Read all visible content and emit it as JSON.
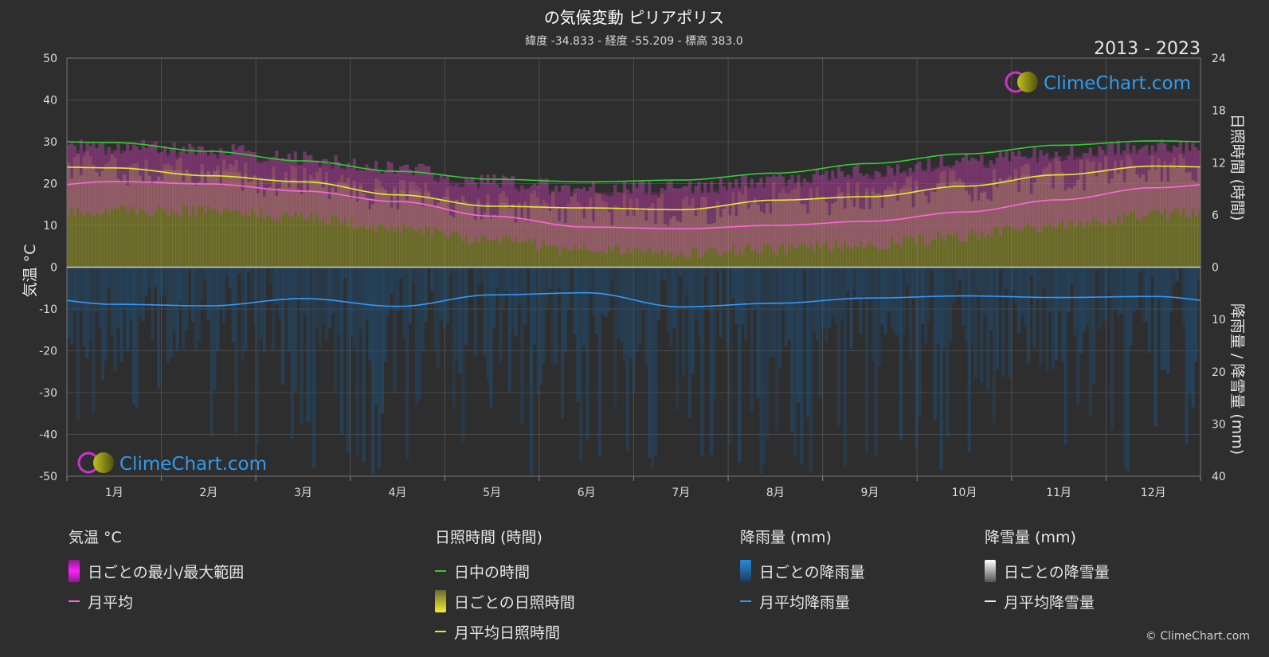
{
  "header": {
    "title": "の気候変動 ピリアポリス",
    "subtitle": "緯度 -34.833 - 経度 -55.209 - 標高 383.0",
    "period": "2013 - 2023"
  },
  "watermark": "ClimeChart.com",
  "copyright": "© ClimeChart.com",
  "chart_data": {
    "type": "area",
    "categories": [
      "1月",
      "2月",
      "3月",
      "4月",
      "5月",
      "6月",
      "7月",
      "8月",
      "9月",
      "10月",
      "11月",
      "12月"
    ],
    "axes": {
      "y_left": {
        "label": "気温 °C",
        "ticks": [
          50,
          40,
          30,
          20,
          10,
          0,
          -10,
          -20,
          -30,
          -40,
          -50
        ],
        "range": [
          -50,
          50
        ]
      },
      "y_right_top": {
        "label": "日照時間 (時間)",
        "ticks": [
          24,
          18,
          12,
          6,
          0
        ],
        "range": [
          0,
          24
        ]
      },
      "y_right_bottom": {
        "label": "降雨量 / 降雪量 (mm)",
        "ticks": [
          0,
          10,
          20,
          30,
          40
        ],
        "range": [
          0,
          40
        ]
      }
    },
    "grid": true,
    "series": [
      {
        "name": "日中の時間",
        "axis": "sunshine_hours",
        "color": "#33cc33",
        "values": [
          14.3,
          13.3,
          12.2,
          11.0,
          10.1,
          9.8,
          10.0,
          10.8,
          11.9,
          13.0,
          14.0,
          14.5
        ]
      },
      {
        "name": "月平均日照時間",
        "axis": "sunshine_hours",
        "color": "#e8e830",
        "values": [
          11.4,
          10.5,
          9.8,
          8.3,
          7.0,
          6.8,
          6.6,
          7.7,
          8.1,
          9.3,
          10.6,
          11.6
        ]
      },
      {
        "name": "月平均",
        "axis": "temperature_c",
        "color": "#ff66dd",
        "values": [
          20.5,
          19.9,
          18.2,
          15.7,
          12.2,
          9.6,
          9.2,
          10.0,
          11.0,
          13.2,
          16.1,
          19.0
        ]
      },
      {
        "name": "日ごとの最小/最大範囲",
        "axis": "temperature_c",
        "color": "#cc44cc",
        "min": [
          13.5,
          13.5,
          12.0,
          9.5,
          6.5,
          4.0,
          3.5,
          4.5,
          5.5,
          7.5,
          10.0,
          12.5
        ],
        "max": [
          28.0,
          27.0,
          25.0,
          22.5,
          19.5,
          18.0,
          18.0,
          20.0,
          22.0,
          24.5,
          26.5,
          28.0
        ]
      },
      {
        "name": "月平均降雨量",
        "axis": "precipitation_mm",
        "color": "#3399ff",
        "values": [
          7.1,
          7.4,
          6.0,
          7.5,
          5.3,
          4.9,
          7.6,
          6.9,
          5.9,
          5.5,
          5.8,
          5.6
        ]
      }
    ]
  },
  "legend": [
    {
      "title": "気温 °C",
      "items": [
        {
          "label": "日ごとの最小/最大範囲",
          "swatch": "block",
          "color": "#dd22dd"
        },
        {
          "label": "月平均",
          "swatch": "line",
          "color": "#ff66dd"
        }
      ]
    },
    {
      "title": "日照時間 (時間)",
      "items": [
        {
          "label": "日中の時間",
          "swatch": "line",
          "color": "#33cc33"
        },
        {
          "label": "日ごとの日照時間",
          "swatch": "block",
          "color": "#d8d83a"
        },
        {
          "label": "月平均日照時間",
          "swatch": "line",
          "color": "#e8e830"
        }
      ]
    },
    {
      "title": "降雨量 (mm)",
      "items": [
        {
          "label": "日ごとの降雨量",
          "swatch": "block",
          "color": "#2a8ae0"
        },
        {
          "label": "月平均降雨量",
          "swatch": "line",
          "color": "#3399ff"
        }
      ]
    },
    {
      "title": "降雪量 (mm)",
      "items": [
        {
          "label": "日ごとの降雪量",
          "swatch": "block",
          "color": "#dddddd"
        },
        {
          "label": "月平均降雪量",
          "swatch": "line",
          "color": "#eeeeee"
        }
      ]
    }
  ]
}
